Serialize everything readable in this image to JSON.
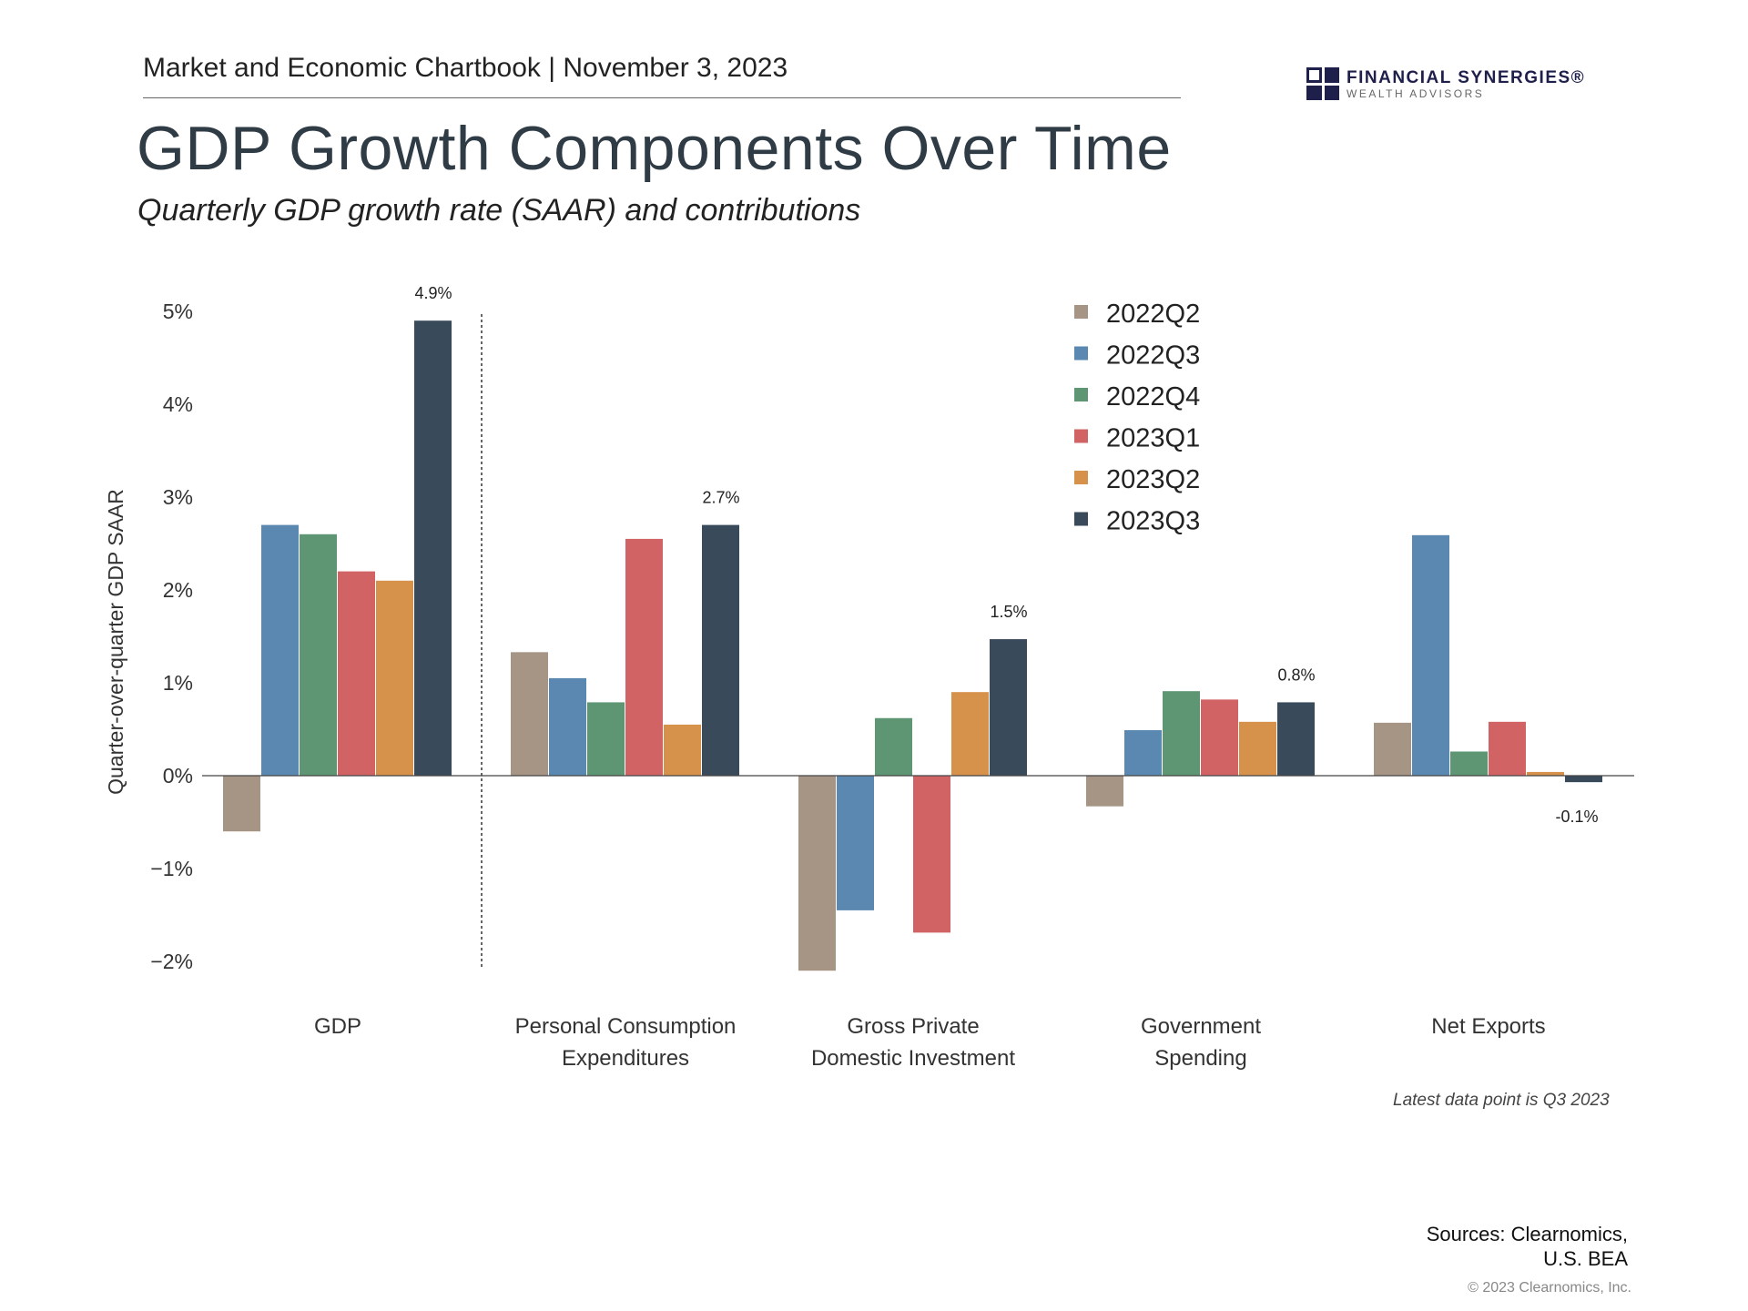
{
  "header": {
    "chartbook": "Market and Economic Chartbook | November 3, 2023",
    "title": "GDP Growth Components Over Time",
    "subtitle": "Quarterly GDP growth rate (SAAR) and contributions"
  },
  "logo": {
    "name": "FINANCIAL SYNERGIES®",
    "sub": "WEALTH ADVISORS",
    "color": "#1e1f4a"
  },
  "chart_data": {
    "type": "bar",
    "title": "GDP Growth Components Over Time",
    "ylabel": "Quarter-over-quarter GDP SAAR",
    "xlabel": "",
    "ylim": [
      -2,
      5
    ],
    "yticks": [
      -2,
      -1,
      0,
      1,
      2,
      3,
      4,
      5
    ],
    "ytick_labels": [
      "−2%",
      "−1%",
      "0%",
      "1%",
      "2%",
      "3%",
      "4%",
      "5%"
    ],
    "categories": [
      [
        "GDP"
      ],
      [
        "Personal Consumption",
        "Expenditures"
      ],
      [
        "Gross Private",
        "Domestic Investment"
      ],
      [
        "Government",
        "Spending"
      ],
      [
        "Net Exports"
      ]
    ],
    "series": [
      {
        "name": "2022Q2",
        "color": "#a69585",
        "values": [
          -0.6,
          1.33,
          -2.1,
          -0.33,
          0.57
        ]
      },
      {
        "name": "2022Q3",
        "color": "#5b88b0",
        "values": [
          2.7,
          1.05,
          -1.45,
          0.49,
          2.59
        ]
      },
      {
        "name": "2022Q4",
        "color": "#5e9673",
        "values": [
          2.6,
          0.79,
          0.62,
          0.91,
          0.26
        ]
      },
      {
        "name": "2023Q1",
        "color": "#d16364",
        "values": [
          2.2,
          2.55,
          -1.69,
          0.82,
          0.58
        ]
      },
      {
        "name": "2023Q2",
        "color": "#d6914b",
        "values": [
          2.1,
          0.55,
          0.9,
          0.58,
          0.04
        ]
      },
      {
        "name": "2023Q3",
        "color": "#394a5a",
        "values": [
          4.9,
          2.7,
          1.47,
          0.79,
          -0.07
        ]
      }
    ],
    "data_labels": [
      "4.9%",
      "2.7%",
      "1.5%",
      "0.8%",
      "-0.1%"
    ],
    "legend": "top-right",
    "separator_after_category": 0
  },
  "footer": {
    "note": "Latest data point is Q3 2023",
    "sources_line1": "Sources: Clearnomics,",
    "sources_line2": "U.S. BEA",
    "copyright": "© 2023 Clearnomics, Inc."
  }
}
